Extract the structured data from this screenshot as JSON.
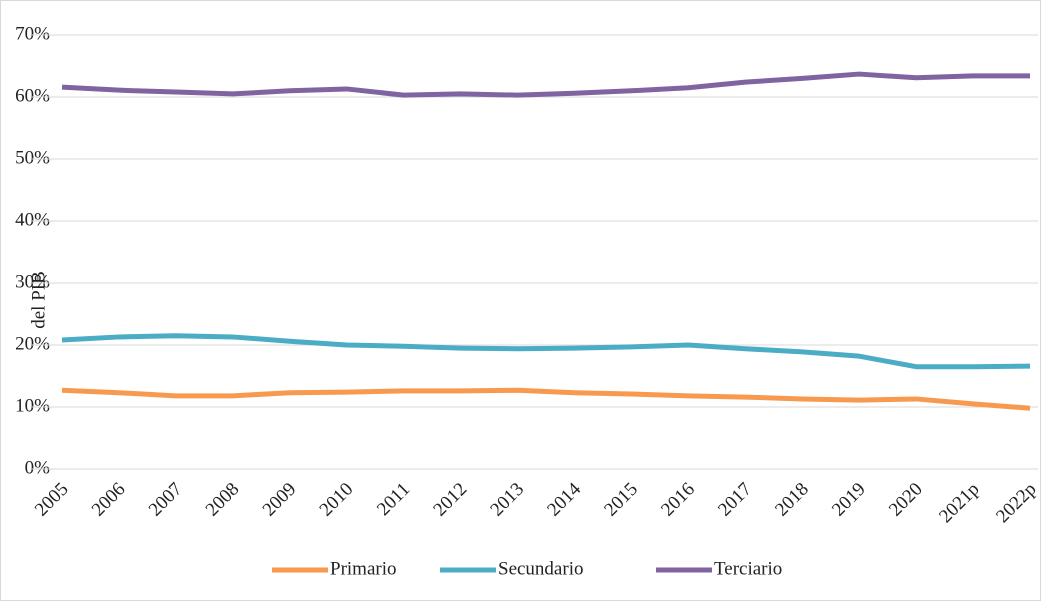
{
  "chart_data": {
    "type": "line",
    "ylabel": "del PIB",
    "categories": [
      "2005",
      "2006",
      "2007",
      "2008",
      "2009",
      "2010",
      "2011",
      "2012",
      "2013",
      "2014",
      "2015",
      "2016",
      "2017",
      "2018",
      "2019",
      "2020",
      "2021p",
      "2022p"
    ],
    "series": [
      {
        "name": "Primario",
        "color": "#f79a4f",
        "values": [
          12.7,
          12.3,
          11.8,
          11.8,
          12.3,
          12.4,
          12.6,
          12.6,
          12.7,
          12.3,
          12.1,
          11.8,
          11.6,
          11.3,
          11.1,
          11.3,
          10.5,
          9.8
        ]
      },
      {
        "name": "Secundario",
        "color": "#4bacc6",
        "values": [
          20.8,
          21.3,
          21.5,
          21.3,
          20.6,
          20.0,
          19.8,
          19.5,
          19.4,
          19.5,
          19.7,
          20.0,
          19.4,
          18.9,
          18.2,
          16.5,
          16.5,
          16.6
        ]
      },
      {
        "name": "Terciario",
        "color": "#8064a2",
        "values": [
          61.6,
          61.1,
          60.8,
          60.5,
          61.0,
          61.3,
          60.3,
          60.5,
          60.3,
          60.6,
          61.0,
          61.5,
          62.4,
          63.0,
          63.7,
          63.1,
          63.4,
          63.4
        ]
      }
    ],
    "ylim": [
      0,
      70
    ],
    "yticks": [
      {
        "value": 0,
        "label": "0%"
      },
      {
        "value": 10,
        "label": "10%"
      },
      {
        "value": 20,
        "label": "20%"
      },
      {
        "value": 30,
        "label": "30%"
      },
      {
        "value": 40,
        "label": "40%"
      },
      {
        "value": 50,
        "label": "50%"
      },
      {
        "value": 60,
        "label": "60%"
      },
      {
        "value": 70,
        "label": "70%"
      }
    ],
    "grid": true,
    "legend": "bottom"
  }
}
